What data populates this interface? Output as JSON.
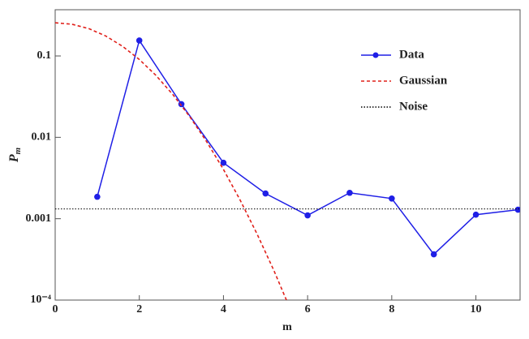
{
  "chart_data": {
    "type": "line",
    "log_y": true,
    "xlabel": "m",
    "ylabel": {
      "base": "P",
      "sub": "m"
    },
    "xlim": [
      0,
      11.05
    ],
    "ylim": [
      0.0001,
      0.37
    ],
    "xticks": [
      0,
      2,
      4,
      6,
      8,
      10
    ],
    "yticks": [
      {
        "value": 0.0001,
        "label": "10⁻⁴"
      },
      0.001,
      0.01,
      0.1
    ],
    "series": [
      {
        "name": "Data",
        "color": "#1f1fe6",
        "style": "solid",
        "markers": true,
        "x": [
          1,
          2,
          3,
          4,
          5,
          6,
          7,
          8,
          9,
          10,
          11
        ],
        "values": [
          0.00186,
          0.155,
          0.0256,
          0.00487,
          0.00204,
          0.0011,
          0.00208,
          0.00177,
          0.000365,
          0.00112,
          0.00129
        ]
      },
      {
        "name": "Gaussian",
        "color": "#e0201a",
        "style": "dashed",
        "markers": false,
        "x": [
          0,
          0.4,
          0.8,
          1.2,
          1.6,
          2.0,
          2.4,
          2.8,
          3.2,
          3.6,
          4.0,
          4.4,
          4.8,
          5.2,
          5.6
        ],
        "values": [
          0.256,
          0.2455,
          0.2168,
          0.1762,
          0.1316,
          0.0906,
          0.0574,
          0.0334,
          0.01794,
          0.00885,
          0.00403,
          0.00168,
          0.000647,
          0.00023,
          7.48e-05
        ]
      },
      {
        "name": "Noise",
        "color": "#000000",
        "style": "dotted",
        "markers": false,
        "hline": 0.00132
      }
    ],
    "legend": "upper-right"
  }
}
